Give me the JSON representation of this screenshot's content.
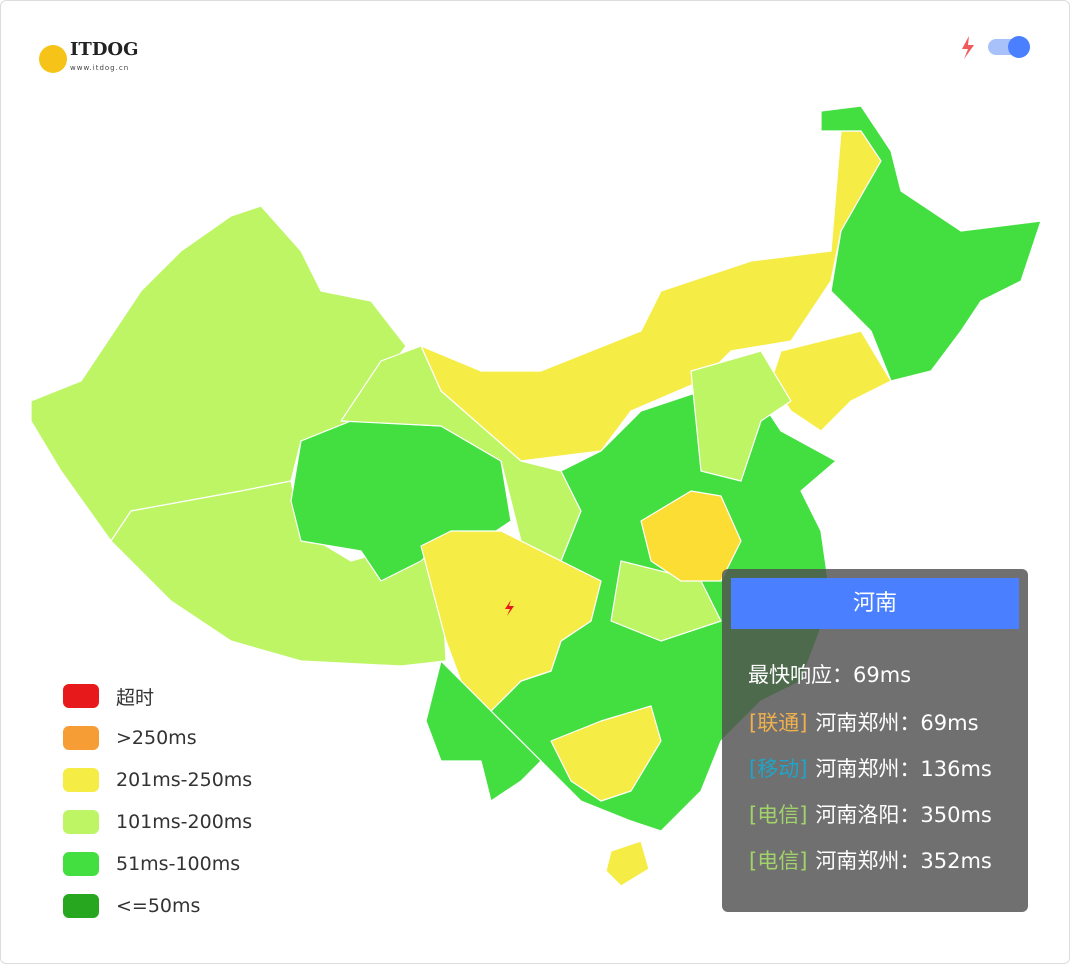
{
  "header": {
    "logo": "ITDOG",
    "logo_sub": "www.itdog.cn"
  },
  "legend": [
    {
      "label": "超时",
      "color": "#e8191a"
    },
    {
      "label": ">250ms",
      "color": "#f79d35"
    },
    {
      "label": "201ms-250ms",
      "color": "#f5ec46"
    },
    {
      "label": "101ms-200ms",
      "color": "#bef565"
    },
    {
      "label": "51ms-100ms",
      "color": "#43df41"
    },
    {
      "label": "<=50ms",
      "color": "#27a620"
    }
  ],
  "tooltip": {
    "title": "河南",
    "fastest": "最快响应：69ms",
    "rows": [
      {
        "isp": "[联通]",
        "isp_color": "#f0b04e",
        "text": "河南郑州：69ms"
      },
      {
        "isp": "[移动]",
        "isp_color": "#1ea5c8",
        "text": "河南郑州：136ms"
      },
      {
        "isp": "[电信]",
        "isp_color": "#a2d36a",
        "text": "河南洛阳：350ms"
      },
      {
        "isp": "[电信]",
        "isp_color": "#a2d36a",
        "text": "河南郑州：352ms"
      }
    ]
  }
}
